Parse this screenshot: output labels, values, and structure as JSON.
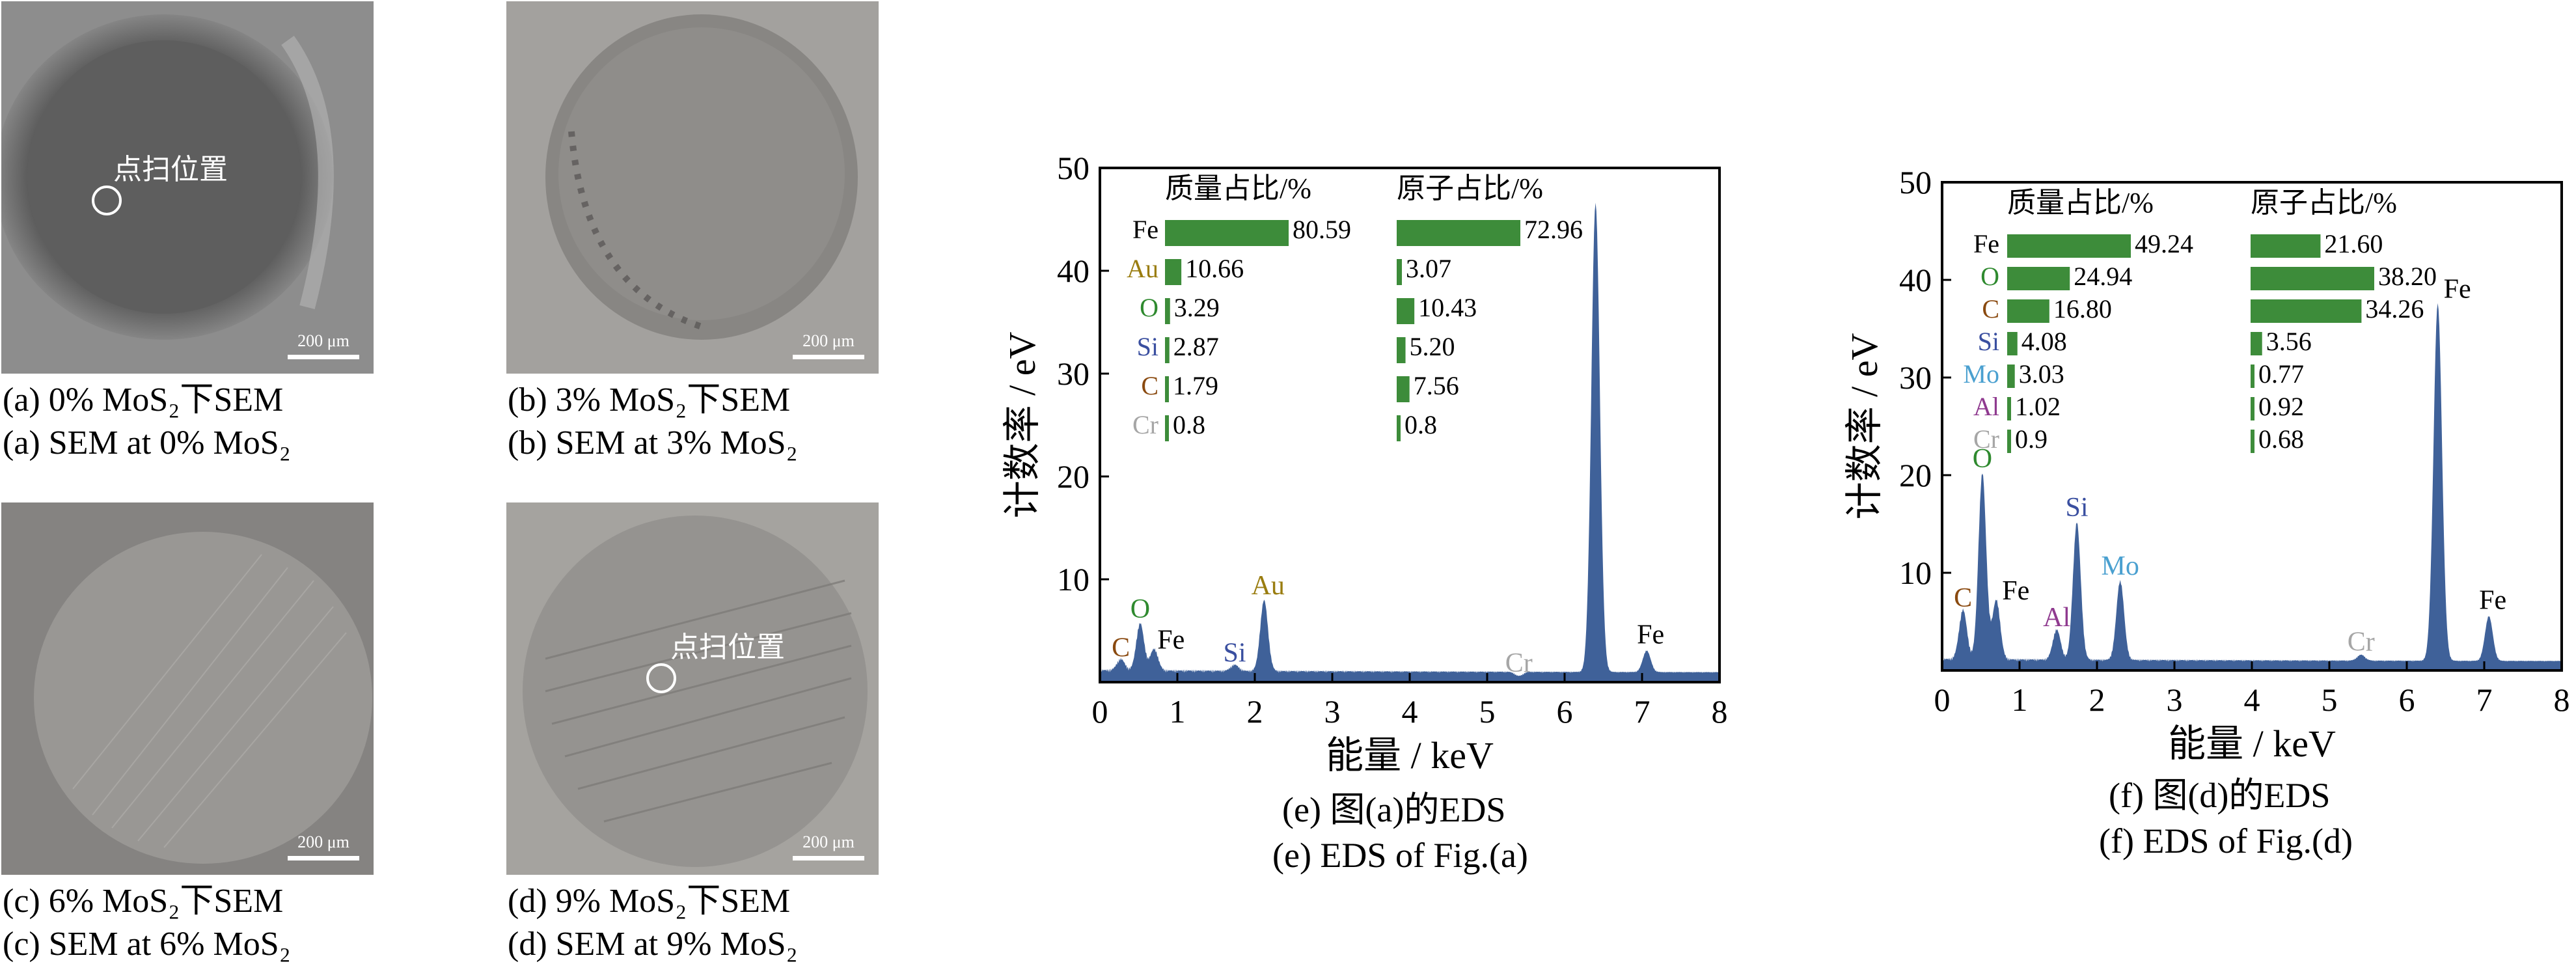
{
  "panels": [
    {
      "id": "a",
      "caption_cn": "(a)  0% MoS₂下SEM",
      "caption_en": "(a)  SEM at 0% MoS₂",
      "scale": "200 μm",
      "marker_label": "点扫位置",
      "tone": "#6e6e6e"
    },
    {
      "id": "b",
      "caption_cn": "(b)  3% MoS₂下SEM",
      "caption_en": "(b)  SEM at 3% MoS₂",
      "scale": "200 μm",
      "marker_label": "",
      "tone": "#9a9894"
    },
    {
      "id": "c",
      "caption_cn": "(c)  6% MoS₂下SEM",
      "caption_en": "(c)  SEM at 6% MoS₂",
      "scale": "200 μm",
      "marker_label": "",
      "tone": "#8b8987"
    },
    {
      "id": "d",
      "caption_cn": "(d)  9% MoS₂下SEM",
      "caption_en": "(d)  SEM at 9% MoS₂",
      "scale": "200 μm",
      "marker_label": "点扫位置",
      "tone": "#9c9a97"
    }
  ],
  "chart_data": [
    {
      "type": "area",
      "id": "e",
      "caption_cn": "(e)  图(a)的EDS",
      "caption_en": "(e)  EDS of Fig.(a)",
      "xlabel": "能量 / keV",
      "ylabel": "计数率 / eV",
      "xlim": [
        0,
        8
      ],
      "ylim": [
        0,
        50
      ],
      "xticks": [
        0,
        1,
        2,
        3,
        4,
        5,
        6,
        7,
        8
      ],
      "yticks": [
        10,
        20,
        30,
        40,
        50
      ],
      "fill_color": "#3f6199",
      "peaks": [
        {
          "x": 0.27,
          "y": 2.0,
          "label": "C",
          "color": "#8a4a10"
        },
        {
          "x": 0.52,
          "y": 5.5,
          "label": "O",
          "color": "#2f8a2f"
        },
        {
          "x": 0.7,
          "y": 3.0,
          "label": "Fe",
          "color": "#000000"
        },
        {
          "x": 1.74,
          "y": 1.5,
          "label": "Si",
          "color": "#3a4fa0"
        },
        {
          "x": 2.12,
          "y": 7.8,
          "label": "Au",
          "color": "#9a7d10"
        },
        {
          "x": 5.41,
          "y": 0.5,
          "label": "Cr",
          "color": "#a6a6a6"
        },
        {
          "x": 6.4,
          "y": 46.5,
          "label": "",
          "color": "#000000"
        },
        {
          "x": 7.06,
          "y": 3.0,
          "label": "Fe",
          "color": "#000000"
        }
      ],
      "table": {
        "mass_header": "质量占比/%",
        "atom_header": "原子占比/%",
        "bar_color": "#3d8c3a",
        "rows": [
          {
            "element": "Fe",
            "color": "#000000",
            "mass": 80.59,
            "atom": 72.96
          },
          {
            "element": "Au",
            "color": "#9a7d10",
            "mass": 10.66,
            "atom": 3.07
          },
          {
            "element": "O",
            "color": "#2f8a2f",
            "mass": 3.29,
            "atom": 10.43
          },
          {
            "element": "Si",
            "color": "#3a4fa0",
            "mass": 2.87,
            "atom": 5.2
          },
          {
            "element": "C",
            "color": "#8a4a10",
            "mass": 1.79,
            "atom": 7.56
          },
          {
            "element": "Cr",
            "color": "#a6a6a6",
            "mass": 0.8,
            "atom": 0.8
          }
        ],
        "mass_text": [
          "80.59",
          "10.66",
          "3.29",
          "2.87",
          "1.79",
          "0.8"
        ],
        "atom_text": [
          "72.96",
          "3.07",
          "10.43",
          "5.20",
          "7.56",
          "0.8"
        ]
      }
    },
    {
      "type": "area",
      "id": "f",
      "caption_cn": "(f)  图(d)的EDS",
      "caption_en": "(f)  EDS of Fig.(d)",
      "xlabel": "能量 / keV",
      "ylabel": "计数率 / eV",
      "xlim": [
        0,
        8
      ],
      "ylim": [
        0,
        50
      ],
      "xticks": [
        0,
        1,
        2,
        3,
        4,
        5,
        6,
        7,
        8
      ],
      "yticks": [
        10,
        20,
        30,
        40,
        50
      ],
      "fill_color": "#3f6199",
      "peaks": [
        {
          "x": 0.27,
          "y": 6.0,
          "label": "C",
          "color": "#8a4a10"
        },
        {
          "x": 0.52,
          "y": 20.0,
          "label": "O",
          "color": "#2f8a2f"
        },
        {
          "x": 0.7,
          "y": 7.0,
          "label": "Fe",
          "color": "#000000"
        },
        {
          "x": 1.48,
          "y": 4.0,
          "label": "Al",
          "color": "#8f3a8f"
        },
        {
          "x": 1.74,
          "y": 15.0,
          "label": "Si",
          "color": "#3a4fa0"
        },
        {
          "x": 2.3,
          "y": 9.0,
          "label": "Mo",
          "color": "#4aa0d0"
        },
        {
          "x": 5.41,
          "y": 1.5,
          "label": "Cr",
          "color": "#a6a6a6"
        },
        {
          "x": 6.4,
          "y": 37.5,
          "label": "Fe",
          "color": "#000000"
        },
        {
          "x": 7.06,
          "y": 5.5,
          "label": "Fe",
          "color": "#000000"
        }
      ],
      "table": {
        "mass_header": "质量占比/%",
        "atom_header": "原子占比/%",
        "bar_color": "#3d8c3a",
        "rows": [
          {
            "element": "Fe",
            "color": "#000000",
            "mass": 49.24,
            "atom": 21.6
          },
          {
            "element": "O",
            "color": "#2f8a2f",
            "mass": 24.94,
            "atom": 38.2
          },
          {
            "element": "C",
            "color": "#8a4a10",
            "mass": 16.8,
            "atom": 34.26
          },
          {
            "element": "Si",
            "color": "#3a4fa0",
            "mass": 4.08,
            "atom": 3.56
          },
          {
            "element": "Mo",
            "color": "#4aa0d0",
            "mass": 3.03,
            "atom": 0.77
          },
          {
            "element": "Al",
            "color": "#8f3a8f",
            "mass": 1.02,
            "atom": 0.92
          },
          {
            "element": "Cr",
            "color": "#a6a6a6",
            "mass": 0.9,
            "atom": 0.68
          }
        ],
        "mass_text": [
          "49.24",
          "24.94",
          "16.80",
          "4.08",
          "3.03",
          "1.02",
          "0.9"
        ],
        "atom_text": [
          "21.60",
          "38.20",
          "34.26",
          "3.56",
          "0.77",
          "0.92",
          "0.68"
        ]
      }
    }
  ]
}
